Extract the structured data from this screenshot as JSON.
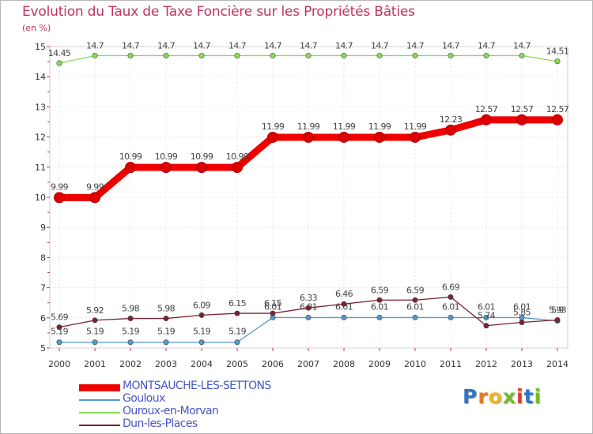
{
  "title": "Evolution du Taux de Taxe Foncière sur les Propriétés Bâties",
  "unit": "(en %)",
  "chart_data": {
    "type": "line",
    "title": "Evolution du Taux de Taxe Foncière sur les Propriétés Bâties",
    "ylabel": "(en %)",
    "xlabel": "",
    "ylim": [
      5,
      15
    ],
    "yticks": [
      "5",
      "6",
      "7",
      "8",
      "9",
      "10",
      "11",
      "12",
      "13",
      "14",
      "15"
    ],
    "x": [
      "2000",
      "2001",
      "2002",
      "2003",
      "2004",
      "2005",
      "2006",
      "2007",
      "2008",
      "2009",
      "2010",
      "2011",
      "2012",
      "2013",
      "2014"
    ],
    "grid": true,
    "series": [
      {
        "name": "MONTSAUCHE-LES-SETTONS",
        "color": "#ee0000",
        "values": [
          9.99,
          9.99,
          10.99,
          10.99,
          10.99,
          10.99,
          11.99,
          11.99,
          11.99,
          11.99,
          11.99,
          12.23,
          12.57,
          12.57,
          12.57
        ],
        "labels": [
          "9.99",
          "9.99",
          "10.99",
          "10.99",
          "10.99",
          "10.99",
          "11.99",
          "11.99",
          "11.99",
          "11.99",
          "11.99",
          "12.23",
          "12.57",
          "12.57",
          "12.57"
        ]
      },
      {
        "name": "Gouloux",
        "color": "#5599cc",
        "values": [
          5.19,
          5.19,
          5.19,
          5.19,
          5.19,
          5.19,
          6.01,
          6.01,
          6.01,
          6.01,
          6.01,
          6.01,
          6.01,
          6.01,
          5.9
        ],
        "labels": [
          "5.19",
          "5.19",
          "5.19",
          "5.19",
          "5.19",
          "5.19",
          "6.01",
          "6.01",
          "6.01",
          "6.01",
          "6.01",
          "6.01",
          "6.01",
          "6.01",
          "5.9"
        ]
      },
      {
        "name": "Ouroux-en-Morvan",
        "color": "#88dd55",
        "values": [
          14.45,
          14.7,
          14.7,
          14.7,
          14.7,
          14.7,
          14.7,
          14.7,
          14.7,
          14.7,
          14.7,
          14.7,
          14.7,
          14.7,
          14.51
        ],
        "labels": [
          "14.45",
          "14.7",
          "14.7",
          "14.7",
          "14.7",
          "14.7",
          "14.7",
          "14.7",
          "14.7",
          "14.7",
          "14.7",
          "14.7",
          "14.7",
          "14.7",
          "14.51"
        ]
      },
      {
        "name": "Dun-les-Places",
        "color": "#7a2330",
        "values": [
          5.69,
          5.92,
          5.98,
          5.98,
          6.09,
          6.15,
          6.15,
          6.33,
          6.46,
          6.59,
          6.59,
          6.69,
          5.74,
          5.85,
          5.93
        ],
        "labels": [
          "5.69",
          "5.92",
          "5.98",
          "5.98",
          "6.09",
          "6.15",
          "6.15",
          "6.33",
          "6.46",
          "6.59",
          "6.59",
          "6.69",
          "5.74",
          "5.85",
          "5.93"
        ]
      }
    ],
    "legend": "bottom-left"
  },
  "logo": {
    "letters": [
      "P",
      "r",
      "o",
      "x",
      "i",
      "t",
      "i"
    ],
    "colors": [
      "#2f74c4",
      "#e57a1e",
      "#f1b51c",
      "#78b928",
      "#d5402f",
      "#2f74c4",
      "#78b928"
    ]
  }
}
